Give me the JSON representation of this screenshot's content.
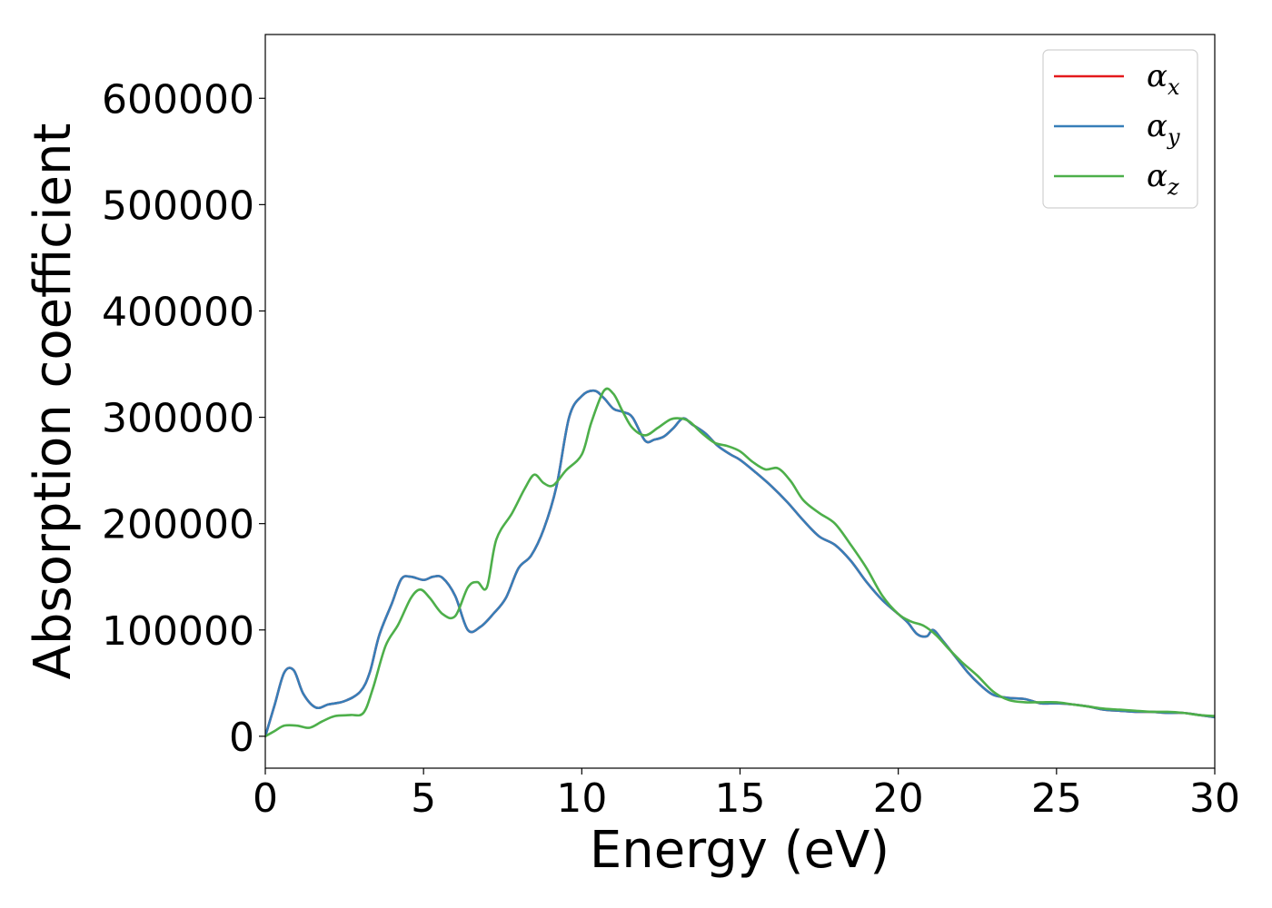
{
  "chart_data": {
    "type": "line",
    "title": "",
    "xlabel": "Energy (eV)",
    "ylabel": "Absorption coefficient",
    "xlim": [
      0,
      30
    ],
    "ylim": [
      -30000,
      660000
    ],
    "xticks": [
      0,
      5,
      10,
      15,
      20,
      25,
      30
    ],
    "xtick_labels": [
      "0",
      "5",
      "10",
      "15",
      "20",
      "25",
      "30"
    ],
    "yticks": [
      0,
      100000,
      200000,
      300000,
      400000,
      500000,
      600000
    ],
    "ytick_labels": [
      "0",
      "100000",
      "200000",
      "300000",
      "400000",
      "500000",
      "600000"
    ],
    "grid": false,
    "legend_position": "top-right",
    "series": [
      {
        "name": "α_x",
        "legend_symbol": "α",
        "legend_subscript": "x",
        "color": "#e41a1c",
        "x": [
          0,
          0.3,
          0.6,
          0.9,
          1.2,
          1.6,
          2.0,
          2.5,
          3.0,
          3.3,
          3.6,
          4.0,
          4.3,
          4.6,
          5.0,
          5.3,
          5.6,
          6.0,
          6.4,
          6.8,
          7.2,
          7.6,
          8.0,
          8.4,
          8.8,
          9.2,
          9.6,
          10.0,
          10.4,
          10.7,
          11.0,
          11.3,
          11.6,
          12.0,
          12.3,
          12.6,
          12.9,
          13.2,
          13.5,
          13.9,
          14.3,
          14.7,
          15.0,
          15.5,
          16.0,
          16.5,
          17.0,
          17.5,
          18.0,
          18.5,
          19.0,
          19.5,
          20.0,
          20.3,
          20.6,
          20.9,
          21.1,
          21.4,
          21.8,
          22.2,
          22.6,
          23.0,
          23.5,
          24.0,
          24.5,
          25.0,
          25.5,
          26.0,
          26.5,
          27.0,
          27.5,
          28.0,
          28.5,
          29.0,
          29.5,
          30.0
        ],
        "y": [
          0,
          30000,
          60000,
          62000,
          40000,
          27000,
          30000,
          33000,
          42000,
          60000,
          95000,
          125000,
          148000,
          150000,
          147000,
          150000,
          149000,
          132000,
          100000,
          103000,
          115000,
          130000,
          158000,
          170000,
          195000,
          235000,
          300000,
          320000,
          325000,
          318000,
          308000,
          305000,
          300000,
          278000,
          279000,
          282000,
          290000,
          299000,
          293000,
          285000,
          273000,
          265000,
          260000,
          248000,
          235000,
          220000,
          203000,
          188000,
          180000,
          165000,
          145000,
          128000,
          115000,
          107000,
          96000,
          94000,
          100000,
          90000,
          75000,
          60000,
          48000,
          39000,
          36000,
          35000,
          31000,
          31000,
          30000,
          28000,
          25000,
          24000,
          23000,
          23000,
          22000,
          22000,
          20000,
          18000
        ]
      },
      {
        "name": "α_y",
        "legend_symbol": "α",
        "legend_subscript": "y",
        "color": "#377eb8",
        "x": [
          0,
          0.3,
          0.6,
          0.9,
          1.2,
          1.6,
          2.0,
          2.5,
          3.0,
          3.3,
          3.6,
          4.0,
          4.3,
          4.6,
          5.0,
          5.3,
          5.6,
          6.0,
          6.4,
          6.8,
          7.2,
          7.6,
          8.0,
          8.4,
          8.8,
          9.2,
          9.6,
          10.0,
          10.4,
          10.7,
          11.0,
          11.3,
          11.6,
          12.0,
          12.3,
          12.6,
          12.9,
          13.2,
          13.5,
          13.9,
          14.3,
          14.7,
          15.0,
          15.5,
          16.0,
          16.5,
          17.0,
          17.5,
          18.0,
          18.5,
          19.0,
          19.5,
          20.0,
          20.3,
          20.6,
          20.9,
          21.1,
          21.4,
          21.8,
          22.2,
          22.6,
          23.0,
          23.5,
          24.0,
          24.5,
          25.0,
          25.5,
          26.0,
          26.5,
          27.0,
          27.5,
          28.0,
          28.5,
          29.0,
          29.5,
          30.0
        ],
        "y": [
          0,
          30000,
          60000,
          62000,
          40000,
          27000,
          30000,
          33000,
          42000,
          60000,
          95000,
          125000,
          148000,
          150000,
          147000,
          150000,
          149000,
          132000,
          100000,
          103000,
          115000,
          130000,
          158000,
          170000,
          195000,
          235000,
          300000,
          320000,
          325000,
          318000,
          308000,
          305000,
          300000,
          278000,
          279000,
          282000,
          290000,
          299000,
          293000,
          285000,
          273000,
          265000,
          260000,
          248000,
          235000,
          220000,
          203000,
          188000,
          180000,
          165000,
          145000,
          128000,
          115000,
          107000,
          96000,
          94000,
          100000,
          90000,
          75000,
          60000,
          48000,
          39000,
          36000,
          35000,
          31000,
          31000,
          30000,
          28000,
          25000,
          24000,
          23000,
          23000,
          22000,
          22000,
          20000,
          18000
        ]
      },
      {
        "name": "α_z",
        "legend_symbol": "α",
        "legend_subscript": "z",
        "color": "#4daf4a",
        "x": [
          0,
          0.3,
          0.6,
          1.0,
          1.4,
          1.8,
          2.2,
          2.7,
          3.1,
          3.4,
          3.8,
          4.2,
          4.6,
          4.9,
          5.2,
          5.6,
          6.0,
          6.4,
          6.7,
          7.0,
          7.3,
          7.8,
          8.2,
          8.5,
          8.8,
          9.1,
          9.5,
          10.0,
          10.3,
          10.7,
          11.0,
          11.3,
          11.6,
          12.0,
          12.4,
          12.8,
          13.1,
          13.4,
          13.8,
          14.2,
          14.6,
          15.0,
          15.4,
          15.8,
          16.2,
          16.6,
          17.0,
          17.5,
          18.0,
          18.5,
          19.0,
          19.5,
          20.0,
          20.4,
          20.8,
          21.2,
          21.6,
          22.0,
          22.5,
          23.0,
          23.5,
          24.0,
          24.5,
          25.0,
          25.5,
          26.0,
          26.5,
          27.0,
          27.5,
          28.0,
          28.5,
          29.0,
          29.5,
          30.0
        ],
        "y": [
          0,
          5000,
          10000,
          10000,
          8000,
          14000,
          19000,
          20000,
          22000,
          45000,
          85000,
          105000,
          130000,
          138000,
          130000,
          115000,
          113000,
          140000,
          145000,
          140000,
          185000,
          210000,
          233000,
          246000,
          238000,
          236000,
          250000,
          265000,
          295000,
          325000,
          322000,
          305000,
          290000,
          283000,
          290000,
          298000,
          299000,
          296000,
          285000,
          276000,
          273000,
          268000,
          258000,
          251000,
          252000,
          240000,
          222000,
          210000,
          200000,
          180000,
          158000,
          132000,
          115000,
          108000,
          104000,
          95000,
          82000,
          70000,
          57000,
          42000,
          34000,
          32000,
          32000,
          32000,
          30000,
          28000,
          26000,
          25000,
          24000,
          23000,
          23000,
          22000,
          20000,
          19000
        ]
      }
    ]
  }
}
